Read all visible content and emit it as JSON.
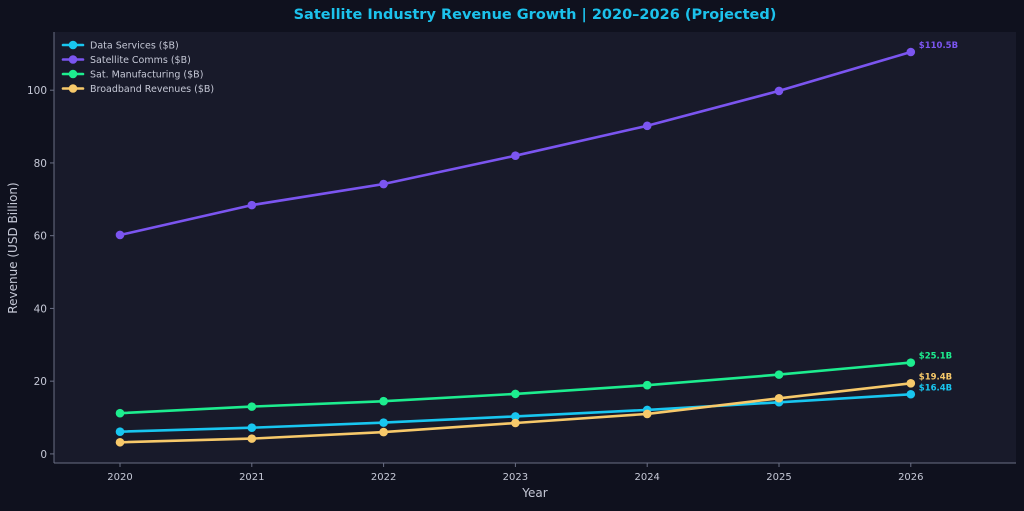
{
  "chart_data": {
    "type": "line",
    "title": "Satellite Industry Revenue Growth  |  2020–2026 (Projected)",
    "xlabel": "Year",
    "ylabel": "Revenue (USD Billion)",
    "categories": [
      "2020",
      "2021",
      "2022",
      "2023",
      "2024",
      "2025",
      "2026"
    ],
    "ylim": [
      -2.5,
      116
    ],
    "yticks": [
      0,
      20,
      40,
      60,
      80,
      100
    ],
    "grid": false,
    "legend_position": "top-left",
    "series": [
      {
        "name": "Data Services ($B)",
        "color": "#18c6f0",
        "values": [
          6.1,
          7.2,
          8.6,
          10.3,
          12.1,
          14.2,
          16.4
        ],
        "end_label": "$16.4B"
      },
      {
        "name": "Satellite Comms ($B)",
        "color": "#7b55f0",
        "values": [
          60.2,
          68.4,
          74.2,
          82.0,
          90.2,
          99.8,
          110.5
        ],
        "end_label": "$110.5B"
      },
      {
        "name": "Sat. Manufacturing ($B)",
        "color": "#1ded8f",
        "values": [
          11.2,
          13.0,
          14.5,
          16.5,
          18.9,
          21.8,
          25.1
        ],
        "end_label": "$25.1B"
      },
      {
        "name": "Broadband Revenues ($B)",
        "color": "#f7c96a",
        "values": [
          3.2,
          4.2,
          6.0,
          8.5,
          11.0,
          15.3,
          19.4
        ],
        "end_label": "$19.4B"
      }
    ],
    "colors": {
      "background": "#0f111e",
      "plot_background": "#181a2a",
      "title": "#1cc2ec",
      "axis_text": "#c5c8d6",
      "axis_line": "#6a6f84"
    }
  }
}
